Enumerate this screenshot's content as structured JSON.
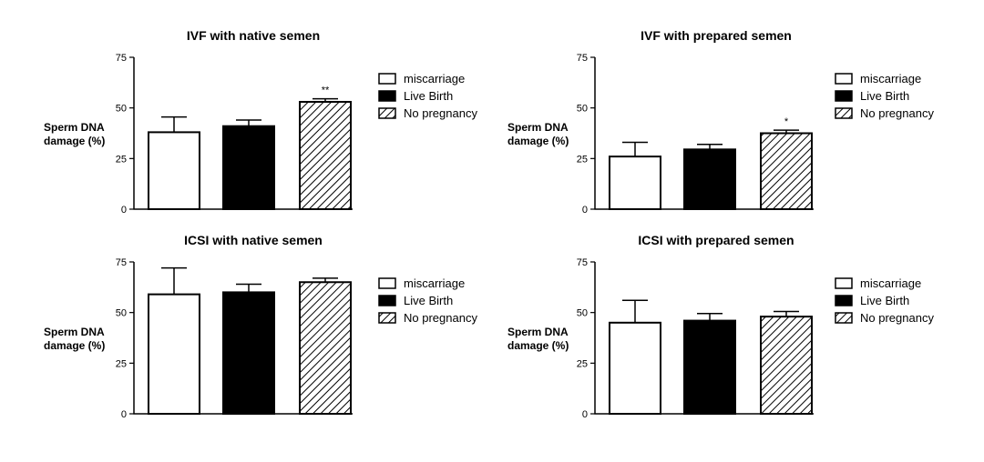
{
  "chart_data": [
    {
      "type": "bar",
      "title": "IVF with native semen",
      "ylabel": [
        "Sperm DNA",
        "damage (%)"
      ],
      "xlabel": "",
      "ylim": [
        0,
        75
      ],
      "yticks": [
        0,
        25,
        50,
        75
      ],
      "categories": [
        "miscarriage",
        "Live Birth",
        "No pregnancy"
      ],
      "values": [
        38,
        41,
        53
      ],
      "errors": [
        7.5,
        3,
        1.5
      ],
      "annotations": [
        "",
        "",
        "**"
      ],
      "legend": {
        "placement": "right",
        "entries": [
          "miscarriage",
          "Live Birth",
          "No pregnancy"
        ]
      }
    },
    {
      "type": "bar",
      "title": "IVF with prepared semen",
      "ylabel": [
        "Sperm DNA",
        "damage (%)"
      ],
      "xlabel": "",
      "ylim": [
        0,
        75
      ],
      "yticks": [
        0,
        25,
        50,
        75
      ],
      "categories": [
        "miscarriage",
        "Live Birth",
        "No pregnancy"
      ],
      "values": [
        26,
        29.5,
        37.5
      ],
      "errors": [
        7,
        2.5,
        1.5
      ],
      "annotations": [
        "",
        "",
        "*"
      ],
      "legend": {
        "placement": "right",
        "entries": [
          "miscarriage",
          "Live Birth",
          "No pregnancy"
        ]
      }
    },
    {
      "type": "bar",
      "title": "ICSI with  native semen",
      "ylabel": [
        "Sperm DNA",
        "damage (%)"
      ],
      "xlabel": "",
      "ylim": [
        0,
        75
      ],
      "yticks": [
        0,
        25,
        50,
        75
      ],
      "categories": [
        "miscarriage",
        "Live Birth",
        "No pregnancy"
      ],
      "values": [
        59,
        60,
        65
      ],
      "errors": [
        13,
        4,
        2
      ],
      "annotations": [
        "",
        "",
        ""
      ],
      "legend": {
        "placement": "right",
        "entries": [
          "miscarriage",
          "Live Birth",
          "No pregnancy"
        ]
      }
    },
    {
      "type": "bar",
      "title": "ICSI with prepared semen",
      "ylabel": [
        "Sperm DNA",
        "damage (%)"
      ],
      "xlabel": "",
      "ylim": [
        0,
        75
      ],
      "yticks": [
        0,
        25,
        50,
        75
      ],
      "categories": [
        "miscarriage",
        "Live Birth",
        "No pregnancy"
      ],
      "values": [
        45,
        46,
        48
      ],
      "errors": [
        11,
        3.5,
        2.5
      ],
      "annotations": [
        "",
        "",
        ""
      ],
      "legend": {
        "placement": "right",
        "entries": [
          "miscarriage",
          "Live Birth",
          "No pregnancy"
        ]
      }
    }
  ]
}
